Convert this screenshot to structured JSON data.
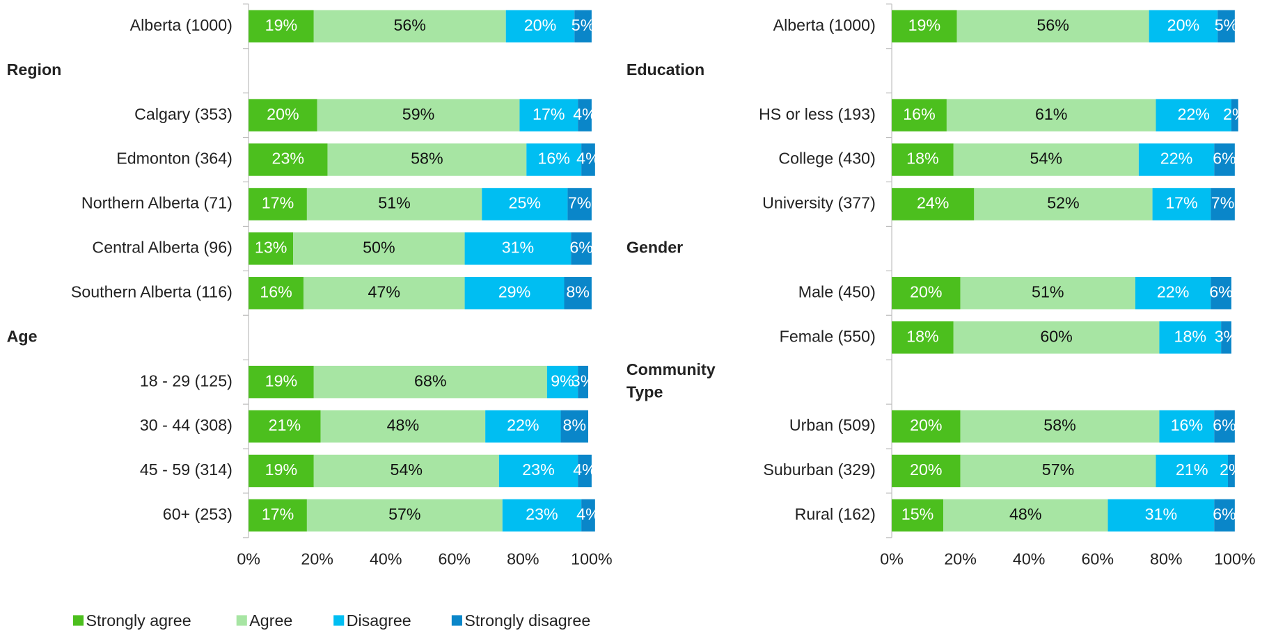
{
  "chart_data": [
    {
      "type": "bar",
      "orientation": "horizontal",
      "stacked": true,
      "categories": [
        "Alberta (1000)",
        "Region",
        "Calgary (353)",
        "Edmonton (364)",
        "Northern Alberta (71)",
        "Central Alberta (96)",
        "Southern Alberta (116)",
        "Age",
        "18 - 29 (125)",
        "30 - 44 (308)",
        "45 - 59 (314)",
        "60+ (253)"
      ],
      "series": [
        {
          "name": "Strongly agree",
          "color": "#4cbf1e",
          "values": [
            19,
            null,
            20,
            23,
            17,
            13,
            16,
            null,
            19,
            21,
            19,
            17
          ],
          "value_labels": [
            "19%",
            null,
            "20%",
            "23%",
            "17%",
            "13%",
            "16%",
            null,
            "19%",
            "21%",
            "19%",
            "17%"
          ]
        },
        {
          "name": "Agree",
          "color": "#a7e5a3",
          "values": [
            56,
            null,
            59,
            58,
            51,
            50,
            47,
            null,
            68,
            48,
            54,
            57
          ],
          "value_labels": [
            "56%",
            null,
            "59%",
            "58%",
            "51%",
            "50%",
            "47%",
            null,
            "68%",
            "48%",
            "54%",
            "57%"
          ]
        },
        {
          "name": "Disagree",
          "color": "#00bef2",
          "values": [
            20,
            null,
            17,
            16,
            25,
            31,
            29,
            null,
            9,
            22,
            23,
            23
          ],
          "value_labels": [
            "20%",
            null,
            "17%",
            "16%",
            "25%",
            "31%",
            "29%",
            null,
            "9%",
            "22%",
            "23%",
            "23%"
          ]
        },
        {
          "name": "Strongly disagree",
          "color": "#0a86c9",
          "values": [
            5,
            null,
            4,
            4,
            7,
            6,
            8,
            null,
            3,
            8,
            4,
            4
          ],
          "value_labels": [
            "5%",
            null,
            "4%",
            "4%",
            "7%",
            "6%",
            "8%",
            null,
            "3%",
            "8%",
            "4%",
            "4%"
          ]
        }
      ],
      "xlim": [
        0,
        100
      ],
      "xticks": [
        {
          "value": 0,
          "label": "0%"
        },
        {
          "value": 20,
          "label": "20%"
        },
        {
          "value": 40,
          "label": "40%"
        },
        {
          "value": 60,
          "label": "60%"
        },
        {
          "value": 80,
          "label": "80%"
        },
        {
          "value": 100,
          "label": "100%"
        }
      ],
      "legend": "bottom"
    },
    {
      "type": "bar",
      "orientation": "horizontal",
      "stacked": true,
      "categories": [
        "Alberta (1000)",
        "Education",
        "HS or less (193)",
        "College (430)",
        "University (377)",
        "Gender",
        "Male (450)",
        "Female (550)",
        "Community Type",
        "Urban (509)",
        "Suburban (329)",
        "Rural (162)"
      ],
      "series": [
        {
          "name": "Strongly agree",
          "color": "#4cbf1e",
          "values": [
            19,
            null,
            16,
            18,
            24,
            null,
            20,
            18,
            null,
            20,
            20,
            15
          ],
          "value_labels": [
            "19%",
            null,
            "16%",
            "18%",
            "24%",
            null,
            "20%",
            "18%",
            null,
            "20%",
            "20%",
            "15%"
          ]
        },
        {
          "name": "Agree",
          "color": "#a7e5a3",
          "values": [
            56,
            null,
            61,
            54,
            52,
            null,
            51,
            60,
            null,
            58,
            57,
            48
          ],
          "value_labels": [
            "56%",
            null,
            "61%",
            "54%",
            "52%",
            null,
            "51%",
            "60%",
            null,
            "58%",
            "57%",
            "48%"
          ]
        },
        {
          "name": "Disagree",
          "color": "#00bef2",
          "values": [
            20,
            null,
            22,
            22,
            17,
            null,
            22,
            18,
            null,
            16,
            21,
            31
          ],
          "value_labels": [
            "20%",
            null,
            "22%",
            "22%",
            "17%",
            null,
            "22%",
            "18%",
            null,
            "16%",
            "21%",
            "31%"
          ]
        },
        {
          "name": "Strongly disagree",
          "color": "#0a86c9",
          "values": [
            5,
            null,
            2,
            6,
            7,
            null,
            6,
            3,
            null,
            6,
            2,
            6
          ],
          "value_labels": [
            "5%",
            null,
            "2%",
            "6%",
            "7%",
            null,
            "6%",
            "3%",
            null,
            "6%",
            "2%",
            "6%"
          ]
        }
      ],
      "xlim": [
        0,
        100
      ],
      "xticks": [
        {
          "value": 0,
          "label": "0%"
        },
        {
          "value": 20,
          "label": "20%"
        },
        {
          "value": 40,
          "label": "40%"
        },
        {
          "value": 60,
          "label": "60%"
        },
        {
          "value": 80,
          "label": "80%"
        },
        {
          "value": 100,
          "label": "100%"
        }
      ]
    }
  ]
}
